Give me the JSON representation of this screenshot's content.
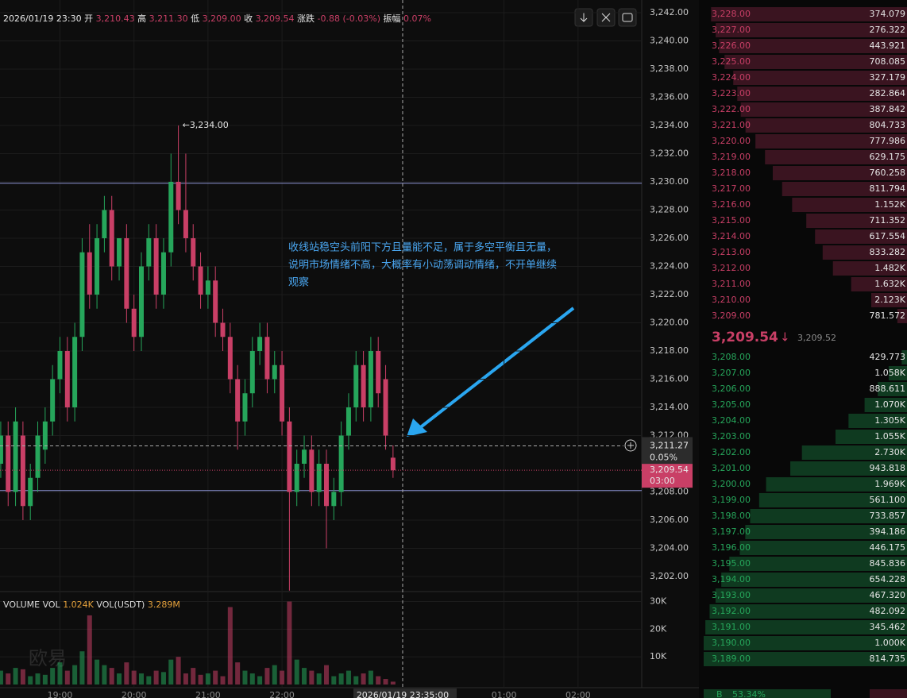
{
  "header": {
    "time": "2026/01/19 23:30",
    "open_label": "开",
    "open": "3,210.43",
    "high_label": "高",
    "high": "3,211.30",
    "low_label": "低",
    "low": "3,209.00",
    "close_label": "收",
    "close": "3,209.54",
    "change_label": "涨跌",
    "change": "-0.88 (-0.03%)",
    "amp_label": "振幅",
    "amp": "0.07%"
  },
  "chart_data": {
    "type": "candlestick",
    "x": [
      18.2,
      18.3,
      18.4,
      18.5,
      18.6,
      18.7,
      18.8,
      18.9,
      19.0,
      19.1,
      19.2,
      19.3,
      19.4,
      19.5,
      19.6,
      19.7,
      19.8,
      19.9,
      20.0,
      20.1,
      20.2,
      20.3,
      20.4,
      20.5,
      20.6,
      20.7,
      20.8,
      20.9,
      21.0,
      21.1,
      21.2,
      21.3,
      21.4,
      21.5,
      21.6,
      21.7,
      21.8,
      21.9,
      22.0,
      22.1,
      22.2,
      22.3,
      22.4,
      22.5,
      22.6,
      22.7,
      22.8,
      22.9,
      23.0,
      23.1,
      23.2,
      23.3,
      23.4,
      23.5
    ],
    "open": [
      3210,
      3212,
      3208,
      3212,
      3207,
      3209,
      3211,
      3213,
      3216,
      3218,
      3214,
      3219,
      3225,
      3222,
      3226,
      3228,
      3224,
      3226,
      3221,
      3219,
      3224,
      3226,
      3222,
      3225,
      3230,
      3228,
      3226,
      3224,
      3222,
      3223,
      3220,
      3219,
      3216,
      3213,
      3215,
      3218,
      3219,
      3216,
      3217,
      3213,
      3208,
      3210,
      3211,
      3208,
      3210,
      3207,
      3208,
      3212,
      3214,
      3217,
      3214,
      3218,
      3216,
      3210.43
    ],
    "high": [
      3213,
      3213,
      3214,
      3213,
      3210,
      3213,
      3214,
      3217,
      3219,
      3219,
      3220,
      3226,
      3227,
      3227,
      3229,
      3229,
      3226,
      3227,
      3222,
      3225,
      3227,
      3227,
      3226,
      3232,
      3234,
      3232,
      3227,
      3225,
      3224,
      3224,
      3221,
      3220,
      3217,
      3216,
      3219,
      3220,
      3220,
      3218,
      3218,
      3214,
      3211,
      3212,
      3212,
      3211,
      3211,
      3209,
      3213,
      3215,
      3218,
      3218,
      3219,
      3219,
      3217,
      3211.3
    ],
    "low": [
      3209,
      3207,
      3207,
      3206,
      3206,
      3208,
      3210,
      3212,
      3215,
      3213,
      3213,
      3218,
      3221,
      3221,
      3225,
      3223,
      3223,
      3220,
      3218,
      3218,
      3223,
      3221,
      3221,
      3224,
      3227,
      3225,
      3223,
      3221,
      3221,
      3219,
      3218,
      3215,
      3211,
      3212,
      3214,
      3217,
      3215,
      3215,
      3212,
      3201,
      3207,
      3209,
      3207,
      3207,
      3204,
      3206,
      3207,
      3211,
      3213,
      3213,
      3213,
      3214,
      3211,
      3209
    ],
    "close": [
      3212,
      3208,
      3213,
      3207,
      3209,
      3212,
      3213,
      3216,
      3218,
      3214,
      3219,
      3225,
      3222,
      3226,
      3228,
      3224,
      3226,
      3221,
      3219,
      3224,
      3226,
      3222,
      3225,
      3230,
      3228,
      3226,
      3224,
      3222,
      3223,
      3220,
      3219,
      3216,
      3213,
      3215,
      3218,
      3219,
      3216,
      3217,
      3213,
      3208,
      3210,
      3211,
      3208,
      3210,
      3207,
      3208,
      3212,
      3214,
      3217,
      3214,
      3218,
      3215,
      3212,
      3209.54
    ],
    "volume": [
      5000,
      4000,
      6000,
      5500,
      3000,
      4000,
      3500,
      6000,
      8000,
      5000,
      7000,
      12000,
      25000,
      9000,
      7000,
      6000,
      4000,
      8000,
      5000,
      4000,
      3000,
      5000,
      4500,
      9000,
      10000,
      4000,
      6000,
      3500,
      4000,
      5000,
      3000,
      28000,
      8000,
      5000,
      4000,
      3000,
      6000,
      7000,
      5000,
      30000,
      9000,
      6000,
      5000,
      4000,
      7000,
      3000,
      4000,
      5000,
      3000,
      4000,
      5000,
      3000,
      2000,
      1024
    ],
    "up_color": "#26a65b",
    "down_color": "#c93f66",
    "ylim": [
      3200.93,
      3242.9
    ],
    "yticks": [
      {
        "value": 3242,
        "label": "3,242.00"
      },
      {
        "value": 3240,
        "label": "3,240.00"
      },
      {
        "value": 3238,
        "label": "3,238.00"
      },
      {
        "value": 3236,
        "label": "3,236.00"
      },
      {
        "value": 3234,
        "label": "3,234.00"
      },
      {
        "value": 3232,
        "label": "3,232.00"
      },
      {
        "value": 3230,
        "label": "3,230.00"
      },
      {
        "value": 3228,
        "label": "3,228.00"
      },
      {
        "value": 3226,
        "label": "3,226.00"
      },
      {
        "value": 3224,
        "label": "3,224.00"
      },
      {
        "value": 3222,
        "label": "3,222.00"
      },
      {
        "value": 3220,
        "label": "3,220.00"
      },
      {
        "value": 3218,
        "label": "3,218.00"
      },
      {
        "value": 3216,
        "label": "3,216.00"
      },
      {
        "value": 3214,
        "label": "3,214.00"
      },
      {
        "value": 3212,
        "label": "3,212.00"
      },
      {
        "value": 3208,
        "label": "3,208.00"
      },
      {
        "value": 3206,
        "label": "3,206.00"
      },
      {
        "value": 3204,
        "label": "3,204.00"
      },
      {
        "value": 3202,
        "label": "3,202.00"
      }
    ],
    "xlim": [
      18.19,
      26.86
    ],
    "xticks": [
      {
        "value": 19,
        "label": "19:00"
      },
      {
        "value": 20,
        "label": "20:00"
      },
      {
        "value": 21,
        "label": "21:00"
      },
      {
        "value": 22,
        "label": "22:00"
      },
      {
        "value": 25,
        "label": "01:00"
      },
      {
        "value": 26,
        "label": "02:00"
      }
    ],
    "vol_ylim": [
      0,
      33600
    ],
    "vol_yticks": [
      {
        "value": 10000,
        "label": "10K"
      },
      {
        "value": 20000,
        "label": "20K"
      },
      {
        "value": 30000,
        "label": "30K"
      }
    ],
    "max_label": {
      "value": 3234,
      "label": "3,234.00"
    },
    "lines": [
      3229.9,
      3208.1
    ],
    "crosshair": {
      "x": 23.63,
      "x_label": "2026/01/19 23:35:00",
      "y": 3211.27,
      "y_label": "3,211.27",
      "pct": "0.05%"
    },
    "last": {
      "value": 3209.54,
      "label": "3,209.54",
      "countdown": "03:00"
    },
    "annotation": [
      "收线站稳空头前阳下方且量能不足，属于多空平衡且无量，",
      "说明市场情绪不高，大概率有小动荡调动情绪，不开单继续",
      "观察"
    ],
    "volume_header": {
      "name": "VOLUME",
      "vol_label": "VOL",
      "vol": "1.024K",
      "usdt_label": "VOL(USDT)",
      "usdt": "3.289M"
    },
    "watermark": "欧易"
  },
  "order_book": {
    "asks": [
      {
        "price": "3,228.00",
        "amount": {
          "value": 374.079,
          "label": "374.079"
        }
      },
      {
        "price": "3,227.00",
        "amount": {
          "value": 276.322,
          "label": "276.322"
        }
      },
      {
        "price": "3,226.00",
        "amount": {
          "value": 443.921,
          "label": "443.921"
        }
      },
      {
        "price": "3,225.00",
        "amount": {
          "value": 708.085,
          "label": "708.085"
        }
      },
      {
        "price": "3,224.00",
        "amount": {
          "value": 327.179,
          "label": "327.179"
        }
      },
      {
        "price": "3,223.00",
        "amount": {
          "value": 282.864,
          "label": "282.864"
        }
      },
      {
        "price": "3,222.00",
        "amount": {
          "value": 387.842,
          "label": "387.842"
        }
      },
      {
        "price": "3,221.00",
        "amount": {
          "value": 804.733,
          "label": "804.733"
        }
      },
      {
        "price": "3,220.00",
        "amount": {
          "value": 777.986,
          "label": "777.986"
        }
      },
      {
        "price": "3,219.00",
        "amount": {
          "value": 629.175,
          "label": "629.175"
        }
      },
      {
        "price": "3,218.00",
        "amount": {
          "value": 760.258,
          "label": "760.258"
        }
      },
      {
        "price": "3,217.00",
        "amount": {
          "value": 811.794,
          "label": "811.794"
        }
      },
      {
        "price": "3,216.00",
        "amount": {
          "value": 1152,
          "label": "1.152K"
        }
      },
      {
        "price": "3,215.00",
        "amount": {
          "value": 711.352,
          "label": "711.352"
        }
      },
      {
        "price": "3,214.00",
        "amount": {
          "value": 617.554,
          "label": "617.554"
        }
      },
      {
        "price": "3,213.00",
        "amount": {
          "value": 833.282,
          "label": "833.282"
        }
      },
      {
        "price": "3,212.00",
        "amount": {
          "value": 1482,
          "label": "1.482K"
        }
      },
      {
        "price": "3,211.00",
        "amount": {
          "value": 1632,
          "label": "1.632K"
        }
      },
      {
        "price": "3,210.00",
        "amount": {
          "value": 2123,
          "label": "2.123K"
        }
      },
      {
        "price": "3,209.00",
        "amount": {
          "value": 781.572,
          "label": "781.572"
        }
      }
    ],
    "mid": {
      "price": "3,209.54",
      "arrow": "↓",
      "index": "3,209.52"
    },
    "bids": [
      {
        "price": "3,208.00",
        "amount": {
          "value": 429.773,
          "label": "429.773"
        }
      },
      {
        "price": "3,207.00",
        "amount": {
          "value": 1058,
          "label": "1.058K"
        }
      },
      {
        "price": "3,206.00",
        "amount": {
          "value": 888.611,
          "label": "888.611"
        }
      },
      {
        "price": "3,205.00",
        "amount": {
          "value": 1070,
          "label": "1.070K"
        }
      },
      {
        "price": "3,204.00",
        "amount": {
          "value": 1305,
          "label": "1.305K"
        }
      },
      {
        "price": "3,203.00",
        "amount": {
          "value": 1055,
          "label": "1.055K"
        }
      },
      {
        "price": "3,202.00",
        "amount": {
          "value": 2730,
          "label": "2.730K"
        }
      },
      {
        "price": "3,201.00",
        "amount": {
          "value": 943.818,
          "label": "943.818"
        }
      },
      {
        "price": "3,200.00",
        "amount": {
          "value": 1969,
          "label": "1.969K"
        }
      },
      {
        "price": "3,199.00",
        "amount": {
          "value": 561.1,
          "label": "561.100"
        }
      },
      {
        "price": "3,198.00",
        "amount": {
          "value": 733.857,
          "label": "733.857"
        }
      },
      {
        "price": "3,197.00",
        "amount": {
          "value": 394.186,
          "label": "394.186"
        }
      },
      {
        "price": "3,196.00",
        "amount": {
          "value": 446.175,
          "label": "446.175"
        }
      },
      {
        "price": "3,195.00",
        "amount": {
          "value": 845.836,
          "label": "845.836"
        }
      },
      {
        "price": "3,194.00",
        "amount": {
          "value": 654.228,
          "label": "654.228"
        }
      },
      {
        "price": "3,193.00",
        "amount": {
          "value": 467.32,
          "label": "467.320"
        }
      },
      {
        "price": "3,192.00",
        "amount": {
          "value": 482.092,
          "label": "482.092"
        }
      },
      {
        "price": "3,191.00",
        "amount": {
          "value": 345.462,
          "label": "345.462"
        }
      },
      {
        "price": "3,190.00",
        "amount": {
          "value": 1000,
          "label": "1.000K"
        }
      },
      {
        "price": "3,189.00",
        "amount": {
          "value": 814.735,
          "label": "814.735"
        }
      }
    ],
    "footer": {
      "side": "B",
      "pct": "53.34%"
    }
  }
}
